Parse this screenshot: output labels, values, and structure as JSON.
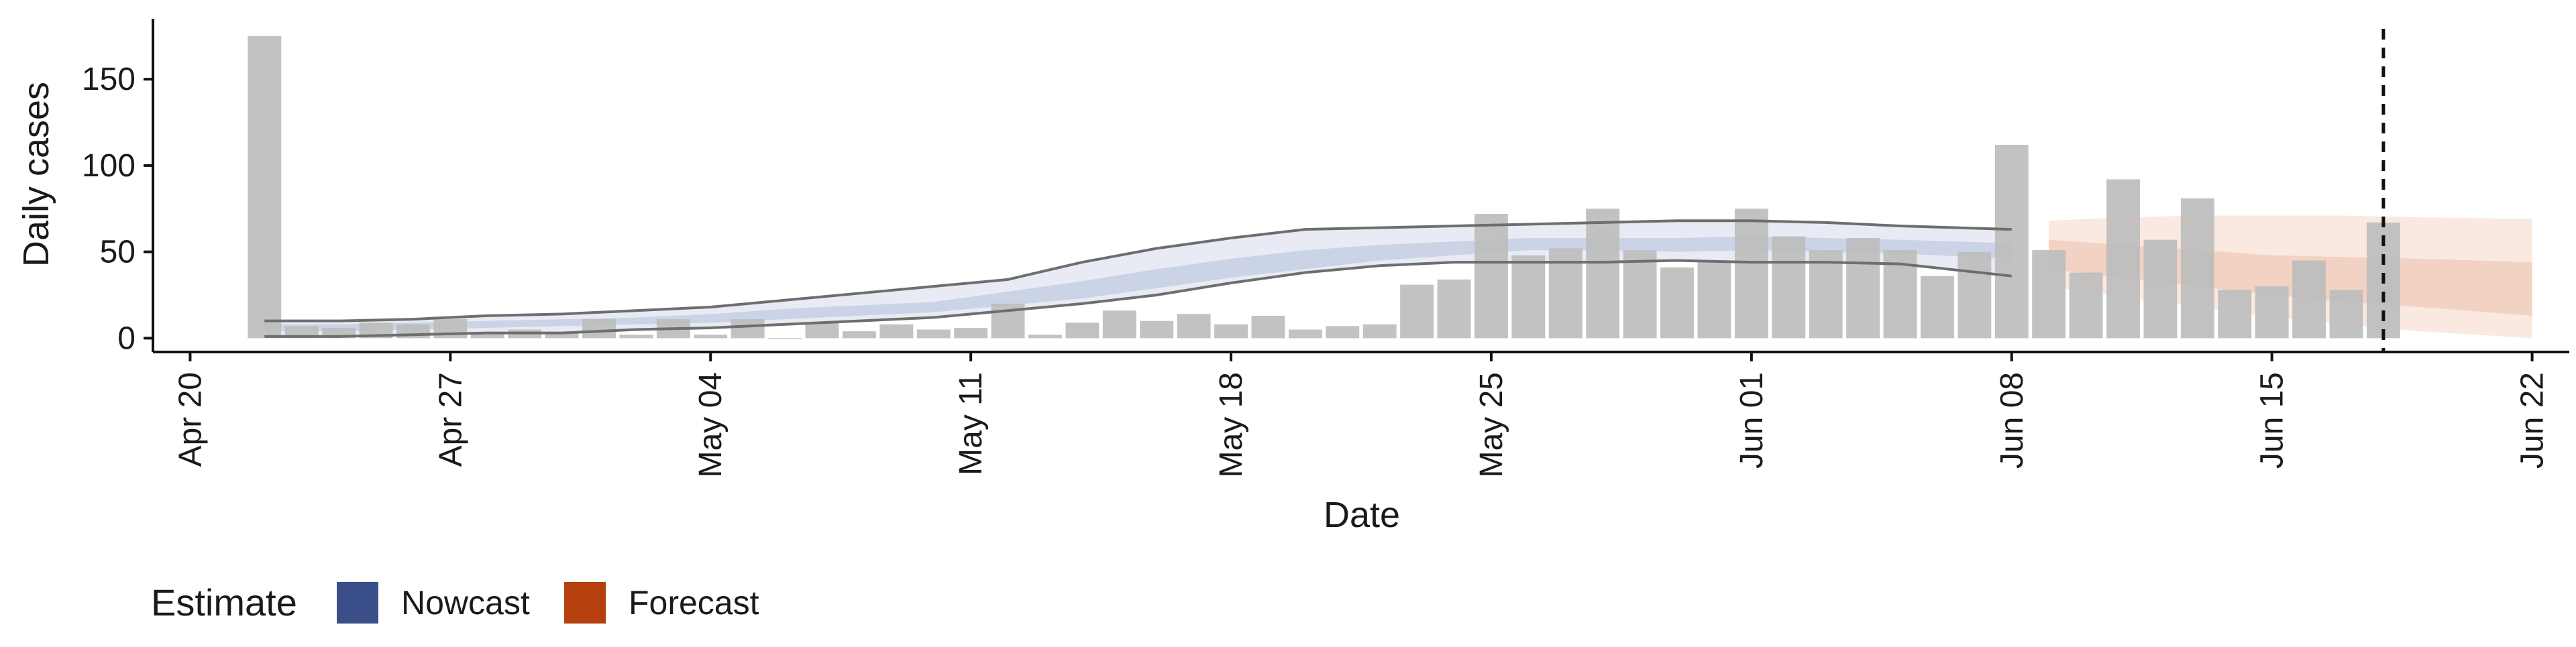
{
  "chart_data": {
    "type": "bar",
    "xlabel": "Date",
    "ylabel": "Daily cases",
    "x_range": [
      "2020-04-19",
      "2020-06-23"
    ],
    "ylim": [
      -8,
      185
    ],
    "y_ticks": [
      0,
      50,
      100,
      150
    ],
    "x_tick_dates": [
      "2020-04-20",
      "2020-04-27",
      "2020-05-04",
      "2020-05-11",
      "2020-05-18",
      "2020-05-25",
      "2020-06-01",
      "2020-06-08",
      "2020-06-15",
      "2020-06-22"
    ],
    "x_tick_labels": [
      "Apr 20",
      "Apr 27",
      "May 04",
      "May 11",
      "May 18",
      "May 25",
      "Jun 01",
      "Jun 08",
      "Jun 15",
      "Jun 22"
    ],
    "grid": false,
    "bars": {
      "dates": [
        "2020-04-22",
        "2020-04-23",
        "2020-04-24",
        "2020-04-25",
        "2020-04-26",
        "2020-04-27",
        "2020-04-28",
        "2020-04-29",
        "2020-04-30",
        "2020-05-01",
        "2020-05-02",
        "2020-05-03",
        "2020-05-04",
        "2020-05-05",
        "2020-05-06",
        "2020-05-07",
        "2020-05-08",
        "2020-05-09",
        "2020-05-10",
        "2020-05-11",
        "2020-05-12",
        "2020-05-13",
        "2020-05-14",
        "2020-05-15",
        "2020-05-16",
        "2020-05-17",
        "2020-05-18",
        "2020-05-19",
        "2020-05-20",
        "2020-05-21",
        "2020-05-22",
        "2020-05-23",
        "2020-05-24",
        "2020-05-25",
        "2020-05-26",
        "2020-05-27",
        "2020-05-28",
        "2020-05-29",
        "2020-05-30",
        "2020-05-31",
        "2020-06-01",
        "2020-06-02",
        "2020-06-03",
        "2020-06-04",
        "2020-06-05",
        "2020-06-06",
        "2020-06-07",
        "2020-06-08",
        "2020-06-09",
        "2020-06-10",
        "2020-06-11",
        "2020-06-12",
        "2020-06-13",
        "2020-06-14",
        "2020-06-15",
        "2020-06-16",
        "2020-06-17",
        "2020-06-18"
      ],
      "values": [
        175,
        7,
        6,
        9,
        8,
        11,
        3,
        5,
        3,
        11,
        2,
        11,
        2,
        11,
        0,
        9,
        4,
        8,
        5,
        6,
        20,
        2,
        9,
        16,
        10,
        14,
        8,
        13,
        5,
        7,
        8,
        31,
        34,
        72,
        48,
        52,
        75,
        51,
        41,
        45,
        75,
        59,
        51,
        58,
        51,
        36,
        50,
        112,
        51,
        38,
        92,
        57,
        81,
        28,
        30,
        45,
        28,
        67
      ],
      "color": "#bdbdbd"
    },
    "series": [
      {
        "name": "Nowcast",
        "color": "#3b4f8a",
        "dates": [
          "2020-04-22",
          "2020-04-24",
          "2020-04-26",
          "2020-04-28",
          "2020-04-30",
          "2020-05-02",
          "2020-05-04",
          "2020-05-06",
          "2020-05-08",
          "2020-05-10",
          "2020-05-12",
          "2020-05-14",
          "2020-05-16",
          "2020-05-18",
          "2020-05-20",
          "2020-05-22",
          "2020-05-24",
          "2020-05-26",
          "2020-05-28",
          "2020-05-30",
          "2020-06-01",
          "2020-06-03",
          "2020-06-05",
          "2020-06-08"
        ],
        "median": [
          6,
          6,
          7,
          8,
          9,
          10,
          12,
          14,
          16,
          18,
          23,
          28,
          34,
          40,
          45,
          49,
          52,
          55,
          55,
          54,
          54,
          54,
          53,
          51
        ],
        "inner_lower": [
          4,
          4,
          5,
          6,
          7,
          8,
          9,
          11,
          13,
          15,
          19,
          23,
          29,
          35,
          40,
          45,
          48,
          51,
          51,
          50,
          51,
          50,
          49,
          46
        ],
        "inner_upper": [
          8,
          8,
          9,
          10,
          11,
          12,
          14,
          17,
          19,
          21,
          27,
          33,
          40,
          46,
          51,
          54,
          56,
          58,
          58,
          58,
          59,
          58,
          57,
          55
        ],
        "outer_lower": [
          1,
          1,
          2,
          3,
          3,
          5,
          6,
          8,
          10,
          12,
          16,
          20,
          25,
          32,
          38,
          42,
          44,
          44,
          44,
          45,
          44,
          44,
          43,
          36
        ],
        "outer_upper": [
          10,
          10,
          11,
          13,
          14,
          16,
          18,
          22,
          26,
          30,
          34,
          44,
          52,
          58,
          63,
          64,
          65,
          66,
          67,
          68,
          68,
          67,
          65,
          63
        ]
      },
      {
        "name": "Forecast",
        "color": "#b5400e",
        "dates": [
          "2020-06-09",
          "2020-06-11",
          "2020-06-13",
          "2020-06-15",
          "2020-06-17",
          "2020-06-19",
          "2020-06-22"
        ],
        "median": [
          50,
          46,
          41,
          37,
          35,
          33,
          30
        ],
        "inner_lower": [
          40,
          35,
          30,
          25,
          21,
          18,
          13
        ],
        "inner_upper": [
          57,
          54,
          51,
          48,
          47,
          46,
          44
        ],
        "outer_lower": [
          30,
          24,
          18,
          12,
          8,
          4,
          0
        ],
        "outer_upper": [
          68,
          70,
          71,
          71,
          71,
          70,
          69
        ]
      }
    ],
    "vline_date": "2020-06-18",
    "legend": {
      "title": "Estimate",
      "position": "bottom",
      "entries": [
        {
          "label": "Nowcast",
          "color": "#3b4f8a"
        },
        {
          "label": "Forecast",
          "color": "#b5400e"
        }
      ]
    }
  }
}
